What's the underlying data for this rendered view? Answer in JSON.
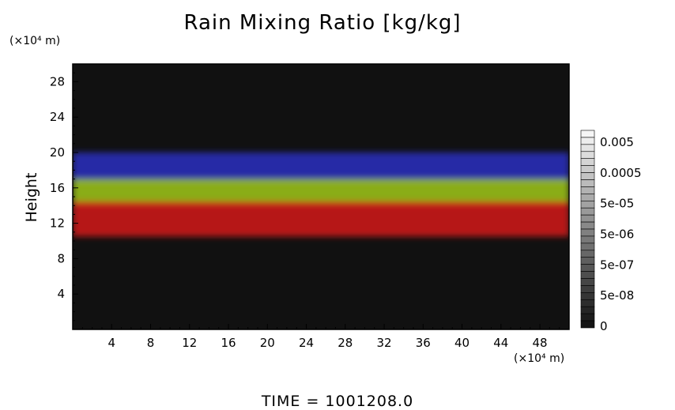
{
  "chart_data": {
    "type": "heatmap",
    "title": "Rain Mixing Ratio [kg/kg]",
    "ylabel": "Height",
    "y_unit": "(×10⁴ m)",
    "x_unit": "(×10⁴ m)",
    "xlim": [
      0,
      51
    ],
    "ylim": [
      0,
      30
    ],
    "xticks": [
      4,
      8,
      12,
      16,
      20,
      24,
      28,
      32,
      36,
      40,
      44,
      48
    ],
    "yticks": [
      4,
      8,
      12,
      16,
      20,
      24,
      28
    ],
    "colorbar": {
      "labels": [
        "0.005",
        "0.0005",
        "5e-05",
        "5e-06",
        "5e-07",
        "5e-08",
        "0"
      ]
    },
    "bands": [
      {
        "color": "#2a2fc0",
        "y_range": [
          16.5,
          20
        ]
      },
      {
        "color": "#9fc814",
        "y_range": [
          14,
          17
        ]
      },
      {
        "color": "#d41818",
        "y_range": [
          10.5,
          14.5
        ]
      }
    ],
    "footer": "TIME = 1001208.0"
  }
}
